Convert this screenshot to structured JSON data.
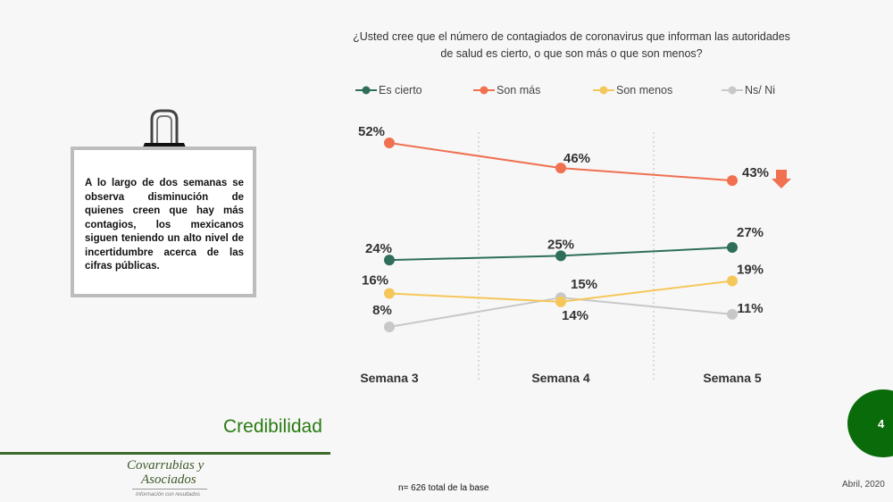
{
  "chart_data": {
    "type": "line",
    "title": "¿Usted cree que el número de contagiados de coronavirus que informan las autoridades de salud es cierto, o que son más o que son menos?",
    "categories": [
      "Semana 3",
      "Semana 4",
      "Semana 5"
    ],
    "series": [
      {
        "name": "Es cierto",
        "color": "#2e6e5a",
        "values": [
          24,
          25,
          27
        ],
        "labels": [
          "24%",
          "25%",
          "27%"
        ]
      },
      {
        "name": "Son más",
        "color": "#f07050",
        "values": [
          52,
          46,
          43
        ],
        "labels": [
          "52%",
          "46%",
          "43%"
        ]
      },
      {
        "name": "Son menos",
        "color": "#f5c75a",
        "values": [
          16,
          14,
          19
        ],
        "labels": [
          "16%",
          "14%",
          "19%"
        ]
      },
      {
        "name": "Ns/ Ni",
        "color": "#c8c8c8",
        "values": [
          8,
          15,
          11
        ],
        "labels": [
          "8%",
          "15%",
          "11%"
        ]
      }
    ],
    "legend": "top",
    "grid": "vertical dashed separators",
    "annotation": "down-arrow-icon next to Son más"
  },
  "title_lines": [
    "¿Usted cree que el número de contagiados de coronavirus que informan las autoridades",
    "de salud es cierto, o que son más o que son menos?"
  ],
  "note": "A lo largo de dos semanas se observa disminución de quienes creen que hay más contagios, los mexicanos siguen teniendo un alto nivel de incertidumbre acerca de las cifras públicas.",
  "section_title": "Credibilidad",
  "page_number": "4",
  "base_note": "n= 626 total de la base",
  "date": "Abril, 2020",
  "logo": {
    "line1": "Covarrubias y",
    "line2": "Asociados",
    "tagline": "Información con resultados"
  },
  "colors": {
    "accent": "#0a6b0a",
    "arrow": "#f07050"
  }
}
